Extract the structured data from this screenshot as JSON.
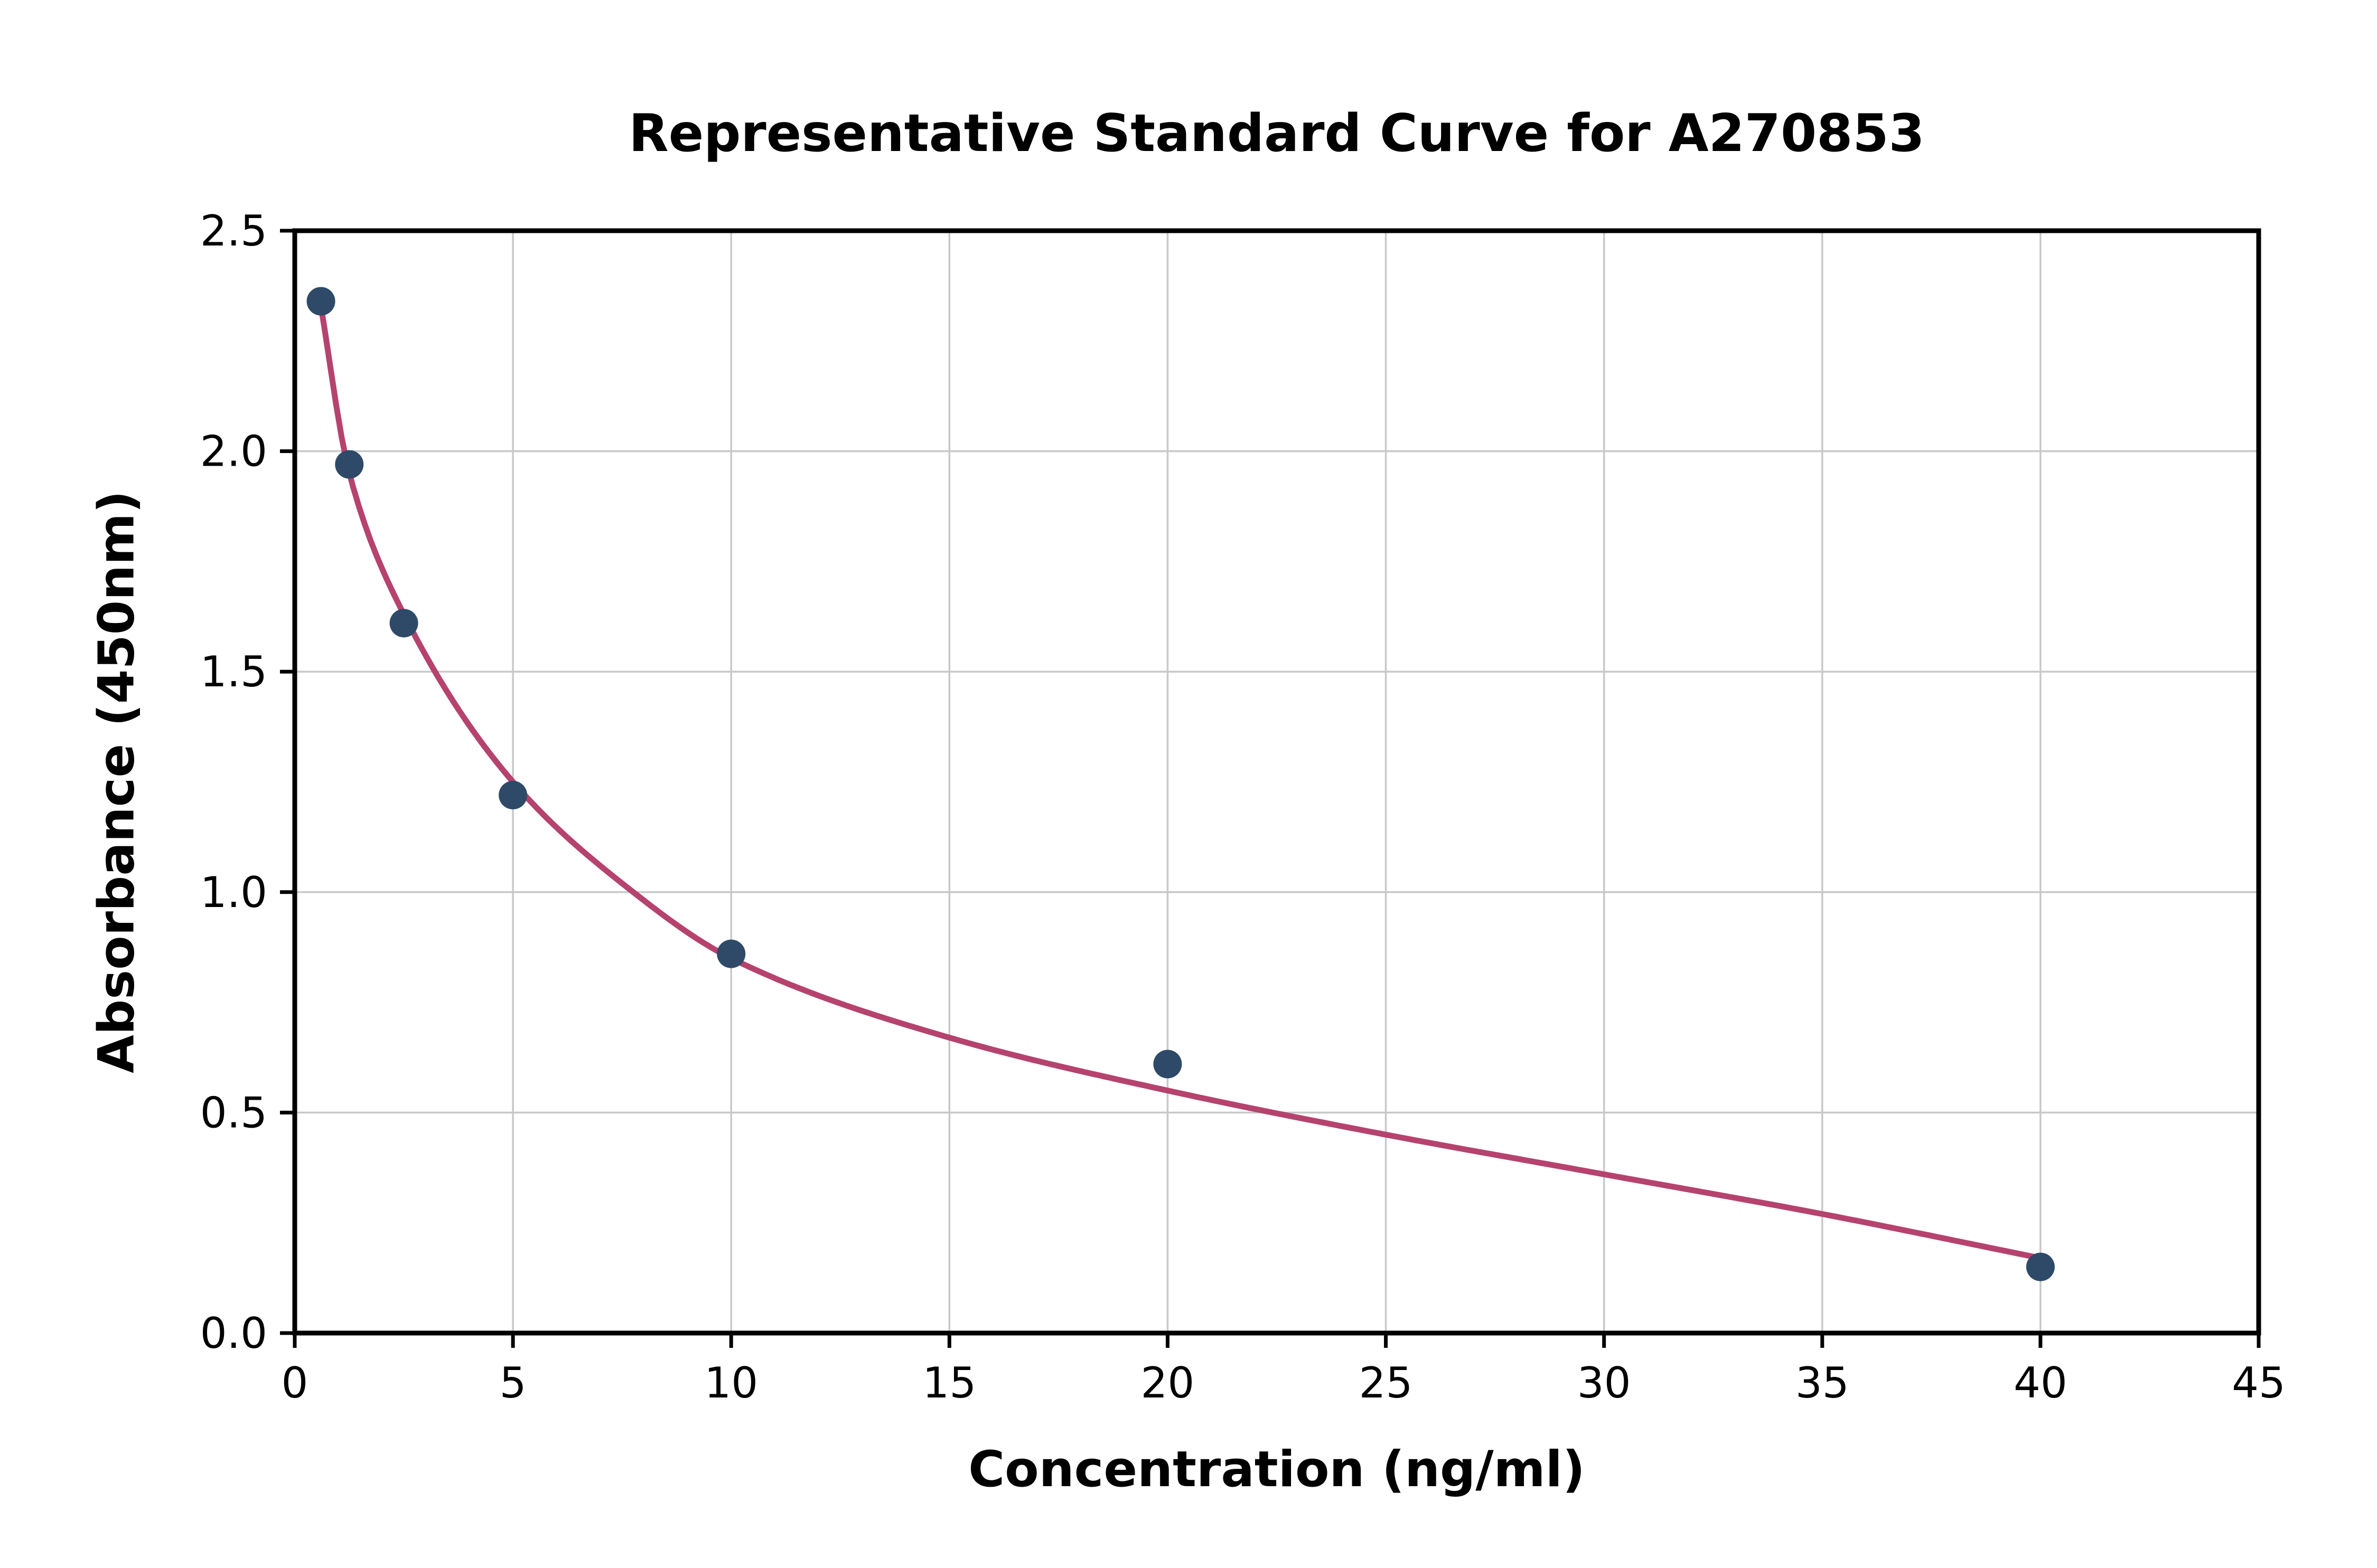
{
  "figure": {
    "background": "#ffffff"
  },
  "chart_data": {
    "type": "scatter",
    "title": "Representative Standard Curve for A270853",
    "xlabel": "Concentration (ng/ml)",
    "ylabel": "Absorbance (450nm)",
    "xlim": [
      0,
      45
    ],
    "ylim": [
      0,
      2.5
    ],
    "x_ticks": [
      0,
      5,
      10,
      15,
      20,
      25,
      30,
      35,
      40,
      45
    ],
    "x_tick_labels": [
      "0",
      "5",
      "10",
      "15",
      "20",
      "25",
      "30",
      "35",
      "40",
      "45"
    ],
    "y_ticks": [
      0,
      0.5,
      1,
      1.5,
      2,
      2.5
    ],
    "y_tick_labels": [
      "0.0",
      "0.5",
      "1.0",
      "1.5",
      "2.0",
      "2.5"
    ],
    "grid": true,
    "legend": "none",
    "series": [
      {
        "name": "fitted-curve",
        "kind": "line",
        "color": "#b5436e",
        "points": [
          {
            "x": 0.55,
            "y": 2.36
          },
          {
            "x": 1.25,
            "y": 1.95
          },
          {
            "x": 2.5,
            "y": 1.63
          },
          {
            "x": 5,
            "y": 1.25
          },
          {
            "x": 7.5,
            "y": 1.02
          },
          {
            "x": 10,
            "y": 0.85
          },
          {
            "x": 15,
            "y": 0.67
          },
          {
            "x": 20,
            "y": 0.55
          },
          {
            "x": 25,
            "y": 0.45
          },
          {
            "x": 30,
            "y": 0.36
          },
          {
            "x": 35,
            "y": 0.27
          },
          {
            "x": 40,
            "y": 0.17
          }
        ]
      },
      {
        "name": "standard-points",
        "kind": "points",
        "color": "#2e4a68",
        "points": [
          {
            "x": 0.6,
            "y": 2.34
          },
          {
            "x": 1.25,
            "y": 1.97
          },
          {
            "x": 2.5,
            "y": 1.61
          },
          {
            "x": 5,
            "y": 1.22
          },
          {
            "x": 10,
            "y": 0.86
          },
          {
            "x": 20,
            "y": 0.61
          },
          {
            "x": 40,
            "y": 0.15
          }
        ]
      }
    ],
    "colors": {
      "grid": "#c8c8c8",
      "axis": "#000000",
      "text": "#000000"
    }
  }
}
